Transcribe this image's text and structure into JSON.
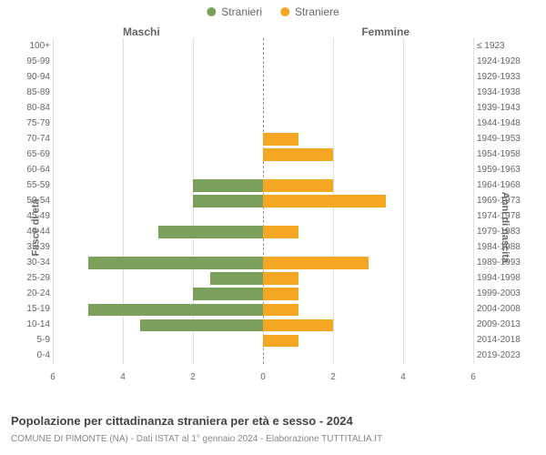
{
  "chart": {
    "type": "population-pyramid",
    "legend": [
      {
        "label": "Stranieri",
        "color": "#7ba05b"
      },
      {
        "label": "Straniere",
        "color": "#f5a623"
      }
    ],
    "header_left": "Maschi",
    "header_right": "Femmine",
    "y_axis_left_label": "Fasce di età",
    "y_axis_right_label": "Anni di nascita",
    "x_max": 6,
    "x_ticks": [
      6,
      4,
      2,
      0,
      2,
      4,
      6
    ],
    "grid_color": "#e0e0e0",
    "center_line_color": "#999999",
    "background_color": "#ffffff",
    "text_color": "#666666",
    "label_fontsize": 10,
    "axis_label_fontsize": 11,
    "legend_fontsize": 12,
    "rows": [
      {
        "age": "100+",
        "birth": "≤ 1923",
        "male": 0,
        "female": 0
      },
      {
        "age": "95-99",
        "birth": "1924-1928",
        "male": 0,
        "female": 0
      },
      {
        "age": "90-94",
        "birth": "1929-1933",
        "male": 0,
        "female": 0
      },
      {
        "age": "85-89",
        "birth": "1934-1938",
        "male": 0,
        "female": 0
      },
      {
        "age": "80-84",
        "birth": "1939-1943",
        "male": 0,
        "female": 0
      },
      {
        "age": "75-79",
        "birth": "1944-1948",
        "male": 0,
        "female": 0
      },
      {
        "age": "70-74",
        "birth": "1949-1953",
        "male": 0,
        "female": 1
      },
      {
        "age": "65-69",
        "birth": "1954-1958",
        "male": 0,
        "female": 2
      },
      {
        "age": "60-64",
        "birth": "1959-1963",
        "male": 0,
        "female": 0
      },
      {
        "age": "55-59",
        "birth": "1964-1968",
        "male": 2,
        "female": 2
      },
      {
        "age": "50-54",
        "birth": "1969-1973",
        "male": 2,
        "female": 3.5
      },
      {
        "age": "45-49",
        "birth": "1974-1978",
        "male": 0,
        "female": 0
      },
      {
        "age": "40-44",
        "birth": "1979-1983",
        "male": 3,
        "female": 1
      },
      {
        "age": "35-39",
        "birth": "1984-1988",
        "male": 0,
        "female": 0
      },
      {
        "age": "30-34",
        "birth": "1989-1993",
        "male": 5,
        "female": 3
      },
      {
        "age": "25-29",
        "birth": "1994-1998",
        "male": 1.5,
        "female": 1
      },
      {
        "age": "20-24",
        "birth": "1999-2003",
        "male": 2,
        "female": 1
      },
      {
        "age": "15-19",
        "birth": "2004-2008",
        "male": 5,
        "female": 1
      },
      {
        "age": "10-14",
        "birth": "2009-2013",
        "male": 3.5,
        "female": 2
      },
      {
        "age": "5-9",
        "birth": "2014-2018",
        "male": 0,
        "female": 1
      },
      {
        "age": "0-4",
        "birth": "2019-2023",
        "male": 0,
        "female": 0
      }
    ],
    "male_bar_color": "#7ba05b",
    "female_bar_color": "#f5a623"
  },
  "title": "Popolazione per cittadinanza straniera per età e sesso - 2024",
  "subtitle": "COMUNE DI PIMONTE (NA) - Dati ISTAT al 1° gennaio 2024 - Elaborazione TUTTITALIA.IT"
}
